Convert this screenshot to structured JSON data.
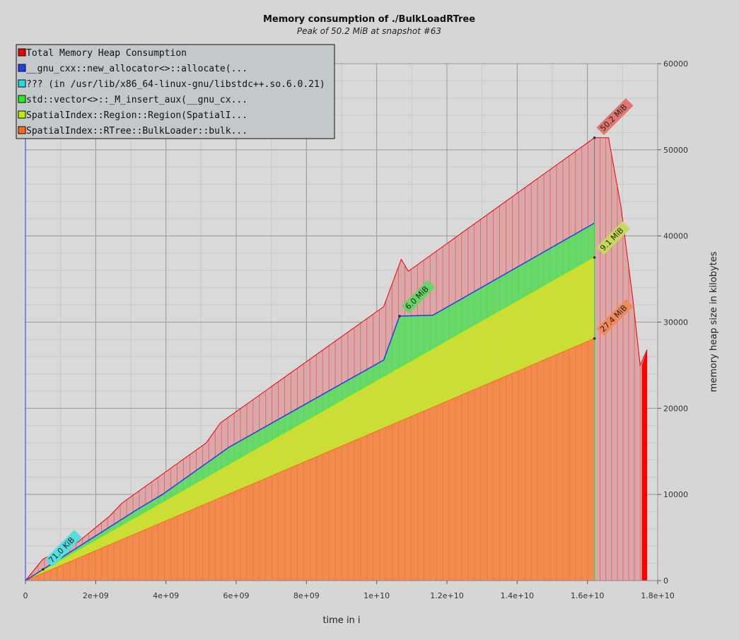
{
  "chart_data": {
    "type": "area",
    "title": "Memory consumption of ./BulkLoadRTree",
    "subtitle": "Peak of 50.2 MiB at snapshot #63",
    "xlabel": "time in i",
    "ylabel": "memory heap size in kilobytes",
    "xlim": [
      0,
      18000000000.0
    ],
    "ylim": [
      0,
      60000
    ],
    "grid": true,
    "legend_position": "top-left",
    "x_ticks": [
      0,
      2000000000.0,
      4000000000.0,
      6000000000.0,
      8000000000.0,
      10000000000.0,
      12000000000.0,
      14000000000.0,
      16000000000.0,
      18000000000.0
    ],
    "x_tick_labels": [
      "0",
      "2e+09",
      "4e+09",
      "6e+09",
      "8e+09",
      "1e+10",
      "1.2e+10",
      "1.4e+10",
      "1.6e+10",
      "1.8e+10"
    ],
    "y_ticks": [
      0,
      10000,
      20000,
      30000,
      40000,
      50000,
      60000
    ],
    "y_tick_labels": [
      "0",
      "10000",
      "20000",
      "30000",
      "40000",
      "50000",
      "60000"
    ],
    "series": [
      {
        "name": "Total Memory Heap Consumption",
        "color": "#ee0000",
        "fill": "#dba8aa",
        "points": [
          [
            0,
            0
          ],
          [
            500000000.0,
            2500
          ],
          [
            1500000000.0,
            4500
          ],
          [
            2400000000.0,
            7500
          ],
          [
            2750000000.0,
            9000
          ],
          [
            5150000000.0,
            16000
          ],
          [
            5550000000.0,
            18300
          ],
          [
            10200000000.0,
            31800
          ],
          [
            10700000000.0,
            37300
          ],
          [
            10900000000.0,
            35900
          ],
          [
            16200000000.0,
            51400
          ],
          [
            16600000000.0,
            51400
          ],
          [
            16950000000.0,
            43500
          ],
          [
            17300000000.0,
            32500
          ],
          [
            17500000000.0,
            25000
          ],
          [
            17700000000.0,
            26800
          ]
        ]
      },
      {
        "name": "__gnu_cxx::new_allocator<>::allocate(...",
        "color": "#1f3fe6",
        "fill": "none",
        "points": [
          [
            0,
            0
          ],
          [
            1000000000.0,
            2600
          ],
          [
            3200000000.0,
            8300
          ],
          [
            3900000000.0,
            10000
          ],
          [
            5800000000.0,
            15500
          ],
          [
            10200000000.0,
            25600
          ],
          [
            10650000000.0,
            30700
          ],
          [
            11600000000.0,
            30800
          ],
          [
            16200000000.0,
            41500
          ]
        ]
      },
      {
        "name": "??? (in /usr/lib/x86_64-linux-gnu/libstdc++.so.6.0.21)",
        "color": "#22dddd",
        "fill": "#22dddd",
        "points": [
          [
            0,
            0
          ],
          [
            16200000000.0,
            70
          ]
        ]
      },
      {
        "name": "std::vector<>::_M_insert_aux(__gnu_cx...",
        "color": "#22ee22",
        "fill": "#6bd66b",
        "points": [
          [
            0,
            0
          ],
          [
            1000000000.0,
            2600
          ],
          [
            3200000000.0,
            8300
          ],
          [
            3900000000.0,
            10000
          ],
          [
            5800000000.0,
            15500
          ],
          [
            10200000000.0,
            25600
          ],
          [
            10650000000.0,
            30700
          ],
          [
            11600000000.0,
            30800
          ],
          [
            16200000000.0,
            41500
          ]
        ]
      },
      {
        "name": "SpatialIndex::Region::Region(SpatialI...",
        "color": "#bbee00",
        "fill": "#ccdd3a",
        "points": [
          [
            0,
            0
          ],
          [
            16200000000.0,
            37500
          ]
        ]
      },
      {
        "name": "SpatialIndex::RTree::BulkLoader::bulk...",
        "color": "#ff6a1a",
        "fill": "#f08c4f",
        "points": [
          [
            0,
            0
          ],
          [
            16200000000.0,
            28100
          ]
        ]
      }
    ],
    "annotations": [
      {
        "text": "50.2 MiB",
        "x": 16200000000.0,
        "y": 51400,
        "color": "#e0766f"
      },
      {
        "text": "9.1 MiB",
        "x": 16200000000.0,
        "y": 37500,
        "color": "#c8d85a"
      },
      {
        "text": "27.4 MiB",
        "x": 16200000000.0,
        "y": 28100,
        "color": "#ef8a5c"
      },
      {
        "text": "6.0 MiB",
        "x": 10650000000.0,
        "y": 30700,
        "color": "#66d466"
      },
      {
        "text": "71.0 KiB",
        "x": 500000000.0,
        "y": 1300,
        "color": "#55dde0"
      }
    ],
    "last_bar": {
      "x_start": 17550000000.0,
      "x_end": 17700000000.0,
      "value": 26800,
      "color": "#ff0000"
    }
  }
}
